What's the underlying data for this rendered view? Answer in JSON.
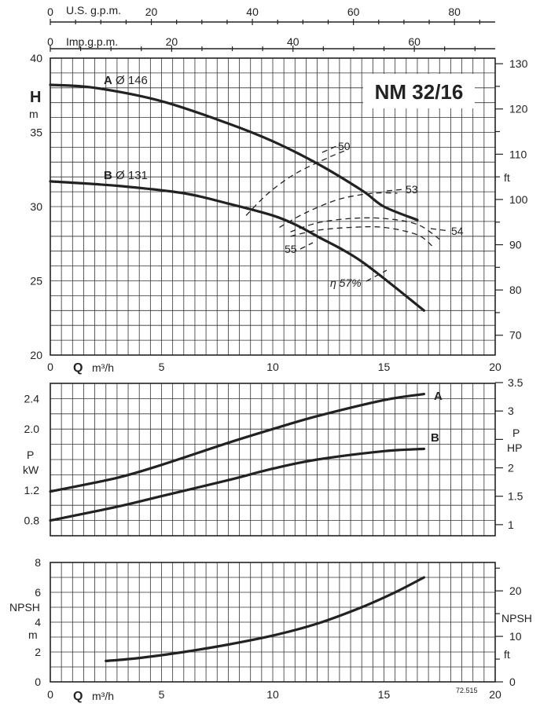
{
  "chart_data": [
    {
      "type": "line",
      "panel": "head",
      "title": "NM 32/16",
      "xlabel": "Q m³/h",
      "xlim": [
        0,
        20
      ],
      "x_ticks": [
        0,
        5,
        10,
        15,
        20
      ],
      "ylabel": "H m",
      "ylim": [
        20,
        40
      ],
      "y_ticks": [
        20,
        25,
        30,
        35,
        40
      ],
      "y2label": "ft",
      "y2_ticks": [
        70,
        80,
        90,
        100,
        110,
        120,
        130
      ],
      "top_axis_1": {
        "label": "U.S. g.p.m.",
        "ticks": [
          0,
          20,
          40,
          60,
          80
        ]
      },
      "top_axis_2": {
        "label": "Imp.g.p.m.",
        "ticks": [
          0,
          20,
          40,
          60
        ]
      },
      "series": [
        {
          "name": "A Ø 146",
          "x": [
            0,
            2,
            5,
            8,
            10,
            12,
            14,
            15,
            16.5
          ],
          "y": [
            38.2,
            38.0,
            37.1,
            35.6,
            34.4,
            32.9,
            31.1,
            30.0,
            29.1
          ]
        },
        {
          "name": "B Ø 131",
          "x": [
            0,
            3,
            6,
            8,
            10,
            11,
            12,
            14,
            16.8
          ],
          "y": [
            31.7,
            31.4,
            30.9,
            30.2,
            29.4,
            28.8,
            28.0,
            26.3,
            23.0
          ]
        }
      ],
      "efficiency_curves": [
        {
          "label": "50",
          "x": [
            8.8,
            9.8,
            11,
            12.5,
            13.3
          ],
          "y": [
            29.4,
            30.9,
            32.2,
            33.3,
            33.8
          ]
        },
        {
          "label": "53",
          "x": [
            10.3,
            11.5,
            13,
            14.5,
            15.6
          ],
          "y": [
            28.6,
            29.6,
            30.5,
            30.9,
            30.9
          ]
        },
        {
          "label": "54",
          "x": [
            10.8,
            12,
            13.5,
            15,
            16.5,
            17.5
          ],
          "y": [
            28.3,
            28.9,
            29.2,
            29.2,
            28.8,
            27.8
          ]
        },
        {
          "label": "55",
          "x": [
            10.8,
            12,
            13.5,
            15,
            16.5,
            17.2
          ],
          "y": [
            28.0,
            28.4,
            28.6,
            28.6,
            28.1,
            27.3
          ]
        },
        {
          "label": "η 57%"
        }
      ]
    },
    {
      "type": "line",
      "panel": "power",
      "xlim": [
        0,
        20
      ],
      "ylabel": "P kW",
      "ylim": [
        0.6,
        2.6
      ],
      "y_ticks": [
        0.8,
        1.2,
        2.0,
        2.4
      ],
      "y2label": "P HP",
      "y2_ticks": [
        1,
        1.5,
        2,
        3,
        3.5
      ],
      "series": [
        {
          "name": "A",
          "x": [
            0,
            3,
            5,
            8,
            10,
            12,
            15,
            16.8
          ],
          "y": [
            1.18,
            1.36,
            1.53,
            1.82,
            2.0,
            2.17,
            2.38,
            2.46
          ]
        },
        {
          "name": "B",
          "x": [
            0,
            3,
            5,
            8,
            10,
            12,
            15,
            16.8
          ],
          "y": [
            0.8,
            0.98,
            1.12,
            1.33,
            1.48,
            1.6,
            1.71,
            1.74
          ]
        }
      ]
    },
    {
      "type": "line",
      "panel": "npsh",
      "xlabel": "Q m³/h",
      "xlim": [
        0,
        20
      ],
      "x_ticks": [
        0,
        5,
        10,
        15,
        20
      ],
      "ylabel": "NPSH m",
      "ylim": [
        0,
        8
      ],
      "y_ticks": [
        0,
        2,
        4,
        6,
        8
      ],
      "y2label": "NPSH ft",
      "y2_ticks": [
        0,
        10,
        20
      ],
      "series": [
        {
          "name": "",
          "x": [
            2.5,
            4,
            6,
            8,
            10,
            12,
            14,
            15.5,
            16.8
          ],
          "y": [
            1.4,
            1.6,
            2.0,
            2.5,
            3.1,
            3.9,
            5.0,
            6.0,
            7.0
          ]
        }
      ]
    }
  ],
  "footer": {
    "code": "72.515"
  }
}
